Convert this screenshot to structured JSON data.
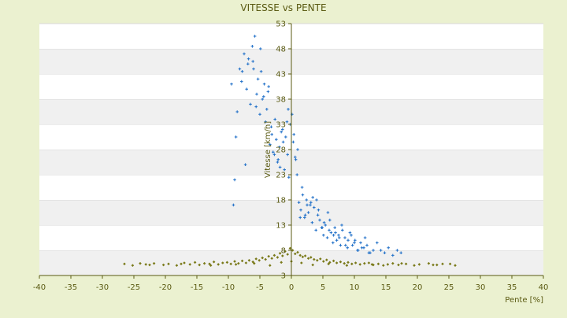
{
  "chart_data": {
    "type": "scatter",
    "title": "VITESSE vs PENTE",
    "xlabel": "Pente [%]",
    "ylabel": "Vitesse [km/h]",
    "xlim": [
      -40,
      40
    ],
    "ylim": [
      3,
      53
    ],
    "x_ticks": [
      -40,
      -35,
      -30,
      -25,
      -20,
      -15,
      -10,
      -5,
      0,
      5,
      10,
      15,
      20,
      25,
      30,
      35,
      40
    ],
    "y_ticks": [
      3,
      8,
      13,
      18,
      23,
      28,
      33,
      38,
      43,
      48,
      53
    ],
    "grid": "horizontal bands",
    "legend": "none",
    "colors": {
      "background": "#ebf1d0",
      "plot_band_light": "#ffffff",
      "plot_band_dark": "#f0f0f0",
      "series_high_speed": "#1f6fc8",
      "series_low_speed": "#7a7a1a",
      "axis_text": "#5a5a12",
      "axis_line": "#5a5a12"
    },
    "series": [
      {
        "color": "#1f6fc8",
        "marker": "plus",
        "x": [
          -9.2,
          -9.0,
          -8.6,
          -8.2,
          -7.9,
          -7.5,
          -7.1,
          -6.8,
          -6.5,
          -6.2,
          -6.0,
          -5.8,
          -5.5,
          -5.3,
          -5.0,
          -4.8,
          -4.6,
          -4.3,
          -4.1,
          -3.9,
          -3.6,
          -3.4,
          -3.1,
          -2.9,
          -2.6,
          -2.4,
          -2.1,
          -1.9,
          -1.6,
          -1.4,
          -1.1,
          -0.9,
          -0.6,
          -0.4,
          -0.2,
          0.1,
          0.3,
          0.6,
          0.9,
          1.2,
          1.5,
          1.8,
          2.1,
          2.4,
          2.7,
          3.0,
          3.3,
          3.6,
          3.9,
          4.2,
          4.5,
          4.8,
          5.1,
          5.4,
          5.7,
          6.0,
          6.3,
          6.6,
          6.9,
          7.2,
          7.5,
          7.8,
          8.1,
          8.5,
          8.9,
          9.3,
          9.7,
          10.1,
          10.5,
          11.0,
          11.5,
          12.0,
          12.5,
          13.0,
          13.6,
          14.2,
          14.8,
          15.4,
          16.1,
          16.8,
          17.4,
          -7.8,
          -6.9,
          -5.6,
          -4.4,
          -3.2,
          -2.2,
          -1.3,
          -0.5,
          0.4,
          1.0,
          1.7,
          2.5,
          3.4,
          4.3,
          5.2,
          6.1,
          7.0,
          8.0,
          9.0,
          10.0,
          11.2,
          12.3,
          -9.5,
          -8.8,
          -7.3,
          -6.1,
          -4.9,
          -3.7,
          -2.7,
          -1.8,
          -0.7,
          0.7,
          1.4,
          2.2,
          3.1,
          4.0,
          4.9,
          5.8,
          6.7,
          7.6,
          8.6,
          9.5,
          10.6,
          11.7
        ],
        "y": [
          17.0,
          22.0,
          35.5,
          44.0,
          41.5,
          47.0,
          40.0,
          46.0,
          37.0,
          48.5,
          44.0,
          50.5,
          39.0,
          42.0,
          35.0,
          43.5,
          38.0,
          41.0,
          33.5,
          36.0,
          40.5,
          29.0,
          31.0,
          27.5,
          34.0,
          30.0,
          26.0,
          28.5,
          31.5,
          32.0,
          24.0,
          30.5,
          27.0,
          22.5,
          33.0,
          35.0,
          29.5,
          26.5,
          23.0,
          17.5,
          16.0,
          19.0,
          14.5,
          18.0,
          15.5,
          17.0,
          13.5,
          16.5,
          12.0,
          15.0,
          14.0,
          12.5,
          11.0,
          13.0,
          10.5,
          12.0,
          11.5,
          9.5,
          12.5,
          10.0,
          11.0,
          9.0,
          12.0,
          10.5,
          8.5,
          11.5,
          9.0,
          10.0,
          8.0,
          9.5,
          8.5,
          9.0,
          7.5,
          8.0,
          9.5,
          8.0,
          7.5,
          8.5,
          7.0,
          8.0,
          7.5,
          43.5,
          45.0,
          36.5,
          38.5,
          32.5,
          25.5,
          29.5,
          36.0,
          31.0,
          28.0,
          20.5,
          17.0,
          18.5,
          16.0,
          13.5,
          14.0,
          11.5,
          13.0,
          10.0,
          9.5,
          8.5,
          7.5,
          41.0,
          30.5,
          25.0,
          45.5,
          48.0,
          39.5,
          27.0,
          24.5,
          33.5,
          26.0,
          14.5,
          15.0,
          17.5,
          18.0,
          12.5,
          15.5,
          11.0,
          10.5,
          9.0,
          11.0,
          8.0,
          10.5
        ]
      },
      {
        "color": "#7a7a1a",
        "marker": "diamond",
        "x": [
          -26.5,
          -25.2,
          -23.1,
          -21.8,
          -20.3,
          -19.5,
          -18.2,
          -17.0,
          -16.1,
          -15.3,
          -14.6,
          -13.8,
          -13.0,
          -12.3,
          -11.6,
          -10.9,
          -10.2,
          -9.6,
          -9.0,
          -8.4,
          -7.8,
          -7.2,
          -6.7,
          -6.1,
          -5.6,
          -5.1,
          -4.6,
          -4.1,
          -3.6,
          -3.1,
          -2.7,
          -2.2,
          -1.8,
          -1.4,
          -1.0,
          -0.6,
          -0.2,
          0.2,
          0.6,
          1.0,
          1.4,
          1.8,
          2.2,
          2.7,
          3.1,
          3.6,
          4.1,
          4.6,
          5.1,
          5.6,
          6.1,
          6.7,
          7.2,
          7.8,
          8.4,
          9.0,
          9.6,
          10.2,
          10.9,
          11.6,
          12.3,
          13.0,
          13.8,
          14.6,
          15.3,
          16.1,
          17.0,
          18.2,
          19.5,
          20.3,
          21.8,
          23.1,
          25.2,
          26.0,
          -24.0,
          -22.5,
          -17.5,
          -12.8,
          -8.8,
          -5.9,
          -3.4,
          -1.6,
          0.0,
          1.6,
          3.4,
          5.9,
          8.8,
          12.8,
          17.5,
          22.5,
          24.0
        ],
        "y": [
          5.3,
          5.0,
          5.2,
          5.4,
          5.1,
          5.3,
          5.0,
          5.5,
          5.2,
          5.6,
          5.1,
          5.4,
          5.3,
          5.7,
          5.2,
          5.5,
          5.6,
          5.3,
          5.8,
          5.4,
          5.9,
          5.5,
          6.0,
          5.7,
          6.3,
          6.0,
          6.5,
          6.2,
          6.8,
          6.4,
          7.0,
          6.6,
          7.4,
          6.9,
          7.8,
          7.2,
          8.4,
          8.0,
          7.3,
          7.6,
          7.0,
          6.7,
          6.9,
          6.4,
          6.6,
          6.2,
          6.0,
          6.3,
          5.8,
          6.1,
          5.6,
          5.9,
          5.5,
          5.7,
          5.4,
          5.6,
          5.3,
          5.5,
          5.2,
          5.4,
          5.5,
          5.1,
          5.3,
          5.0,
          5.2,
          5.4,
          5.1,
          5.3,
          5.0,
          5.2,
          5.4,
          5.1,
          5.3,
          5.0,
          5.4,
          5.1,
          5.3,
          5.0,
          5.2,
          5.4,
          5.0,
          5.6,
          5.8,
          5.5,
          5.1,
          5.3,
          5.0,
          5.2,
          5.4,
          5.1,
          5.3
        ]
      }
    ]
  }
}
